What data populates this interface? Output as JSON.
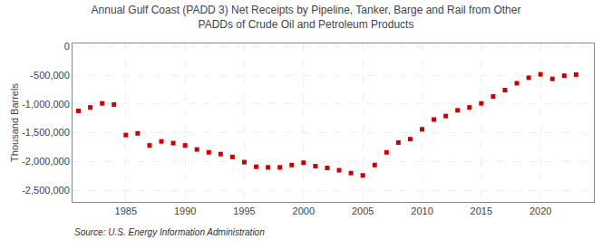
{
  "chart_data": {
    "type": "scatter",
    "title": "Annual Gulf Coast (PADD 3) Net Receipts by Pipeline, Tanker, Barge and Rail from Other\nPADDs of Crude Oil and Petroleum Products",
    "y_label": "Thousand Barrels",
    "annotations": [
      "Source: U.S. Energy Information Administration"
    ],
    "x": [
      1981,
      1982,
      1983,
      1984,
      1985,
      1986,
      1987,
      1988,
      1989,
      1990,
      1991,
      1992,
      1993,
      1994,
      1995,
      1996,
      1997,
      1998,
      1999,
      2000,
      2001,
      2002,
      2003,
      2004,
      2005,
      2006,
      2007,
      2008,
      2009,
      2010,
      2011,
      2012,
      2013,
      2014,
      2015,
      2016,
      2017,
      2018,
      2019,
      2020,
      2021,
      2022,
      2023
    ],
    "values": [
      -1120000,
      -1060000,
      -990000,
      -1010000,
      -1540000,
      -1510000,
      -1720000,
      -1650000,
      -1680000,
      -1720000,
      -1790000,
      -1840000,
      -1870000,
      -1920000,
      -2010000,
      -2090000,
      -2100000,
      -2100000,
      -2060000,
      -2020000,
      -2080000,
      -2110000,
      -2150000,
      -2200000,
      -2240000,
      -2060000,
      -1840000,
      -1670000,
      -1610000,
      -1440000,
      -1270000,
      -1210000,
      -1110000,
      -1060000,
      -990000,
      -870000,
      -760000,
      -640000,
      -545000,
      -485000,
      -565000,
      -510000,
      -490000
    ],
    "color": "#cc0000",
    "marker": "square",
    "xlim": [
      1980.5,
      2024.5
    ],
    "xticks": [
      1985,
      1990,
      1995,
      2000,
      2005,
      2010,
      2015,
      2020
    ],
    "ylim": [
      -2700000,
      50000
    ],
    "yticks": [
      0,
      {
        "value": -500000,
        "label": "-500,000"
      },
      {
        "value": -1000000,
        "label": "-1,000,000"
      },
      {
        "value": -1500000,
        "label": "-1,500,000"
      },
      {
        "value": -2000000,
        "label": "-2,000,000"
      },
      {
        "value": -2500000,
        "label": "-2,500,000"
      }
    ],
    "grid": true
  }
}
